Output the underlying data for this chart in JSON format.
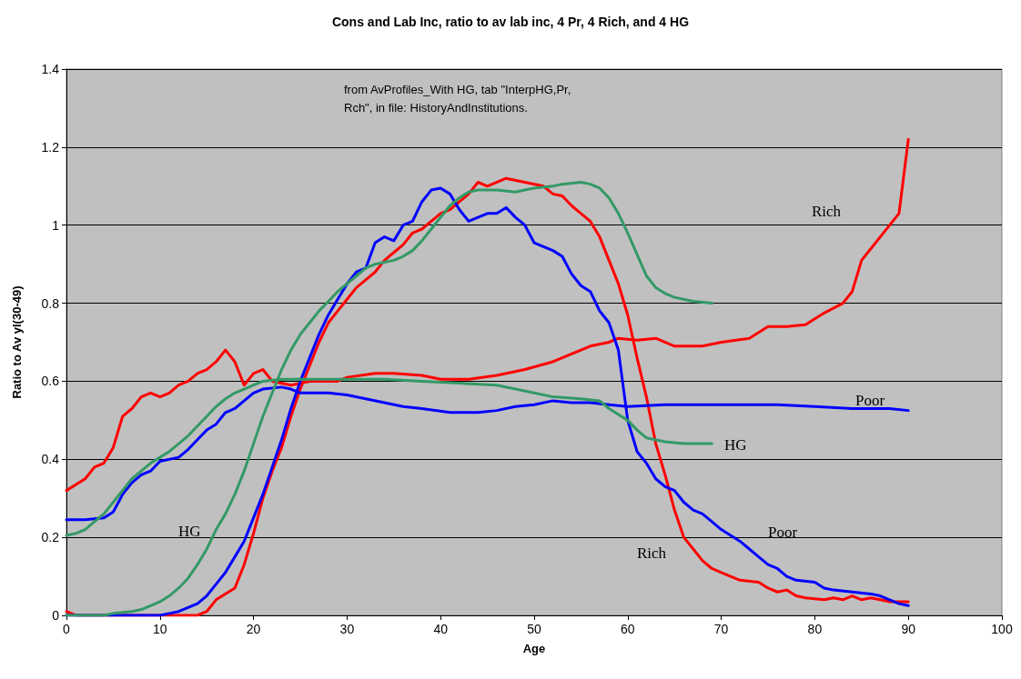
{
  "chart_data": {
    "type": "line",
    "title": "Cons and Lab Inc, ratio to av lab inc, 4 Pr, 4 Rich, and 4 HG",
    "xlabel": "Age",
    "ylabel": "Ratio to Av yl(30-49)",
    "xlim": [
      0,
      100
    ],
    "xticks": [
      0,
      10,
      20,
      30,
      40,
      50,
      60,
      70,
      80,
      90,
      100
    ],
    "ylim": [
      0,
      1.4
    ],
    "yticks": [
      0,
      0.2,
      0.4,
      0.6,
      0.8,
      1,
      1.2,
      1.4
    ],
    "grid": "y",
    "marker": "none",
    "line_style": "solid",
    "annotations": [
      "from AvProfiles_With HG, tab \"InterpHG,Pr,Rch\", in file: HistoryAndInstitutions.",
      "Rich",
      "Poor",
      "HG",
      "Poor",
      "Rich",
      "HG"
    ],
    "series": [
      {
        "color": "#ff0000",
        "x": [
          0,
          2,
          3,
          4,
          5,
          6,
          7,
          8,
          9,
          10,
          11,
          12,
          13,
          14,
          15,
          16,
          17,
          18,
          19,
          20,
          21,
          22,
          24,
          26,
          29,
          30,
          33,
          35,
          38,
          40,
          43,
          46,
          49,
          52,
          54,
          56,
          58,
          59,
          61,
          63,
          65,
          68,
          70,
          73,
          75,
          77,
          79,
          81,
          83,
          84,
          85,
          86,
          87,
          89,
          90
        ],
        "values": [
          0.32,
          0.35,
          0.38,
          0.39,
          0.43,
          0.51,
          0.53,
          0.56,
          0.57,
          0.56,
          0.57,
          0.59,
          0.6,
          0.62,
          0.63,
          0.65,
          0.68,
          0.65,
          0.59,
          0.62,
          0.63,
          0.6,
          0.59,
          0.6,
          0.6,
          0.61,
          0.62,
          0.62,
          0.615,
          0.605,
          0.605,
          0.615,
          0.63,
          0.65,
          0.67,
          0.69,
          0.7,
          0.71,
          0.705,
          0.71,
          0.69,
          0.69,
          0.7,
          0.71,
          0.74,
          0.74,
          0.745,
          0.775,
          0.8,
          0.83,
          0.91,
          0.94,
          0.97,
          1.03,
          1.22
        ]
      },
      {
        "color": "#ff0000",
        "x": [
          0,
          1,
          14,
          15,
          16,
          18,
          19,
          20,
          21,
          22,
          23,
          24,
          25,
          26,
          27,
          28,
          29,
          30,
          31,
          32,
          33,
          34,
          35,
          36,
          37,
          38,
          39,
          40,
          41,
          42,
          43,
          44,
          45,
          47,
          49,
          51,
          52,
          53,
          54,
          55,
          56,
          57,
          58,
          59,
          60,
          61,
          62,
          63,
          64,
          65,
          66,
          67,
          68,
          69,
          70,
          71,
          72,
          74,
          75,
          76,
          77,
          78,
          79,
          81,
          82,
          83,
          84,
          85,
          86,
          87,
          88,
          90
        ],
        "values": [
          0.01,
          0,
          0,
          0.01,
          0.04,
          0.07,
          0.13,
          0.21,
          0.3,
          0.37,
          0.43,
          0.51,
          0.58,
          0.64,
          0.7,
          0.75,
          0.78,
          0.81,
          0.84,
          0.86,
          0.88,
          0.91,
          0.93,
          0.95,
          0.98,
          0.99,
          1.01,
          1.03,
          1.04,
          1.06,
          1.08,
          1.11,
          1.1,
          1.12,
          1.11,
          1.1,
          1.08,
          1.075,
          1.05,
          1.03,
          1.01,
          0.97,
          0.91,
          0.85,
          0.77,
          0.66,
          0.56,
          0.44,
          0.36,
          0.27,
          0.2,
          0.17,
          0.14,
          0.12,
          0.11,
          0.1,
          0.09,
          0.085,
          0.07,
          0.06,
          0.065,
          0.05,
          0.045,
          0.04,
          0.045,
          0.04,
          0.05,
          0.04,
          0.045,
          0.04,
          0.035,
          0.035
        ]
      },
      {
        "color": "#0000ff",
        "x": [
          0,
          2,
          4,
          5,
          6,
          7,
          8,
          9,
          10,
          12,
          13,
          14,
          15,
          16,
          17,
          18,
          19,
          20,
          21,
          23,
          24,
          25,
          28,
          30,
          32,
          34,
          36,
          38,
          41,
          44,
          46,
          48,
          50,
          52,
          54,
          56,
          58,
          60,
          64,
          68,
          72,
          76,
          80,
          84,
          88,
          90
        ],
        "values": [
          0.245,
          0.245,
          0.25,
          0.265,
          0.31,
          0.34,
          0.36,
          0.37,
          0.395,
          0.405,
          0.425,
          0.45,
          0.475,
          0.49,
          0.52,
          0.53,
          0.55,
          0.57,
          0.58,
          0.585,
          0.58,
          0.57,
          0.57,
          0.565,
          0.555,
          0.545,
          0.535,
          0.53,
          0.52,
          0.52,
          0.525,
          0.535,
          0.54,
          0.55,
          0.545,
          0.545,
          0.54,
          0.535,
          0.54,
          0.54,
          0.54,
          0.54,
          0.535,
          0.53,
          0.53,
          0.525
        ]
      },
      {
        "color": "#0000ff",
        "x": [
          0,
          10,
          11,
          12,
          13,
          14,
          15,
          16,
          17,
          18,
          19,
          20,
          21,
          22,
          23,
          24,
          25,
          26,
          27,
          28,
          29,
          30,
          31,
          32,
          33,
          34,
          35,
          36,
          37,
          38,
          39,
          40,
          41,
          42,
          43,
          44,
          45,
          46,
          47,
          48,
          49,
          50,
          52,
          53,
          54,
          55,
          56,
          57,
          58,
          59,
          60,
          61,
          62,
          63,
          64,
          65,
          66,
          67,
          68,
          69,
          70,
          71,
          72,
          73,
          74,
          75,
          76,
          77,
          78,
          80,
          81,
          82,
          84,
          86,
          87,
          88,
          89,
          90
        ],
        "values": [
          0,
          0,
          0.005,
          0.01,
          0.02,
          0.03,
          0.05,
          0.08,
          0.11,
          0.15,
          0.19,
          0.25,
          0.31,
          0.38,
          0.45,
          0.53,
          0.6,
          0.66,
          0.72,
          0.77,
          0.81,
          0.85,
          0.88,
          0.89,
          0.955,
          0.97,
          0.96,
          1,
          1.01,
          1.06,
          1.09,
          1.095,
          1.08,
          1.04,
          1.01,
          1.02,
          1.03,
          1.03,
          1.045,
          1.02,
          1,
          0.955,
          0.935,
          0.92,
          0.875,
          0.845,
          0.83,
          0.78,
          0.75,
          0.68,
          0.5,
          0.42,
          0.39,
          0.35,
          0.33,
          0.32,
          0.29,
          0.27,
          0.26,
          0.24,
          0.22,
          0.205,
          0.19,
          0.17,
          0.15,
          0.13,
          0.12,
          0.1,
          0.09,
          0.085,
          0.07,
          0.065,
          0.06,
          0.055,
          0.05,
          0.04,
          0.03,
          0.025
        ]
      },
      {
        "color": "#339966",
        "x": [
          0,
          1,
          2,
          3,
          4,
          5,
          6,
          7,
          8,
          9,
          10,
          11,
          12,
          13,
          14,
          15,
          16,
          17,
          18,
          19,
          20,
          21,
          23,
          26,
          30,
          34,
          38,
          42,
          46,
          48,
          50,
          52,
          55,
          57,
          58,
          60,
          61,
          62,
          64,
          66,
          69
        ],
        "values": [
          0.205,
          0.21,
          0.22,
          0.24,
          0.26,
          0.29,
          0.32,
          0.35,
          0.37,
          0.39,
          0.405,
          0.42,
          0.44,
          0.46,
          0.485,
          0.51,
          0.535,
          0.555,
          0.57,
          0.58,
          0.59,
          0.6,
          0.605,
          0.605,
          0.605,
          0.605,
          0.6,
          0.595,
          0.59,
          0.58,
          0.57,
          0.56,
          0.555,
          0.55,
          0.53,
          0.5,
          0.475,
          0.455,
          0.445,
          0.44,
          0.44
        ]
      },
      {
        "color": "#339966",
        "x": [
          0,
          4,
          5,
          7,
          8,
          9,
          10,
          11,
          12,
          13,
          14,
          15,
          16,
          17,
          18,
          19,
          20,
          21,
          22,
          23,
          24,
          25,
          26,
          27,
          28,
          29,
          30,
          31,
          32,
          33,
          34,
          35,
          36,
          37,
          38,
          39,
          40,
          41,
          42,
          43,
          44,
          46,
          48,
          49,
          50,
          52,
          53,
          55,
          56,
          57,
          58,
          59,
          60,
          61,
          62,
          63,
          64,
          65,
          67,
          69
        ],
        "values": [
          0,
          0,
          0.005,
          0.01,
          0.015,
          0.025,
          0.035,
          0.05,
          0.07,
          0.095,
          0.13,
          0.17,
          0.22,
          0.26,
          0.31,
          0.37,
          0.44,
          0.51,
          0.57,
          0.63,
          0.68,
          0.72,
          0.75,
          0.78,
          0.805,
          0.83,
          0.85,
          0.87,
          0.89,
          0.9,
          0.905,
          0.91,
          0.92,
          0.935,
          0.96,
          0.99,
          1.02,
          1.05,
          1.07,
          1.085,
          1.09,
          1.09,
          1.085,
          1.09,
          1.095,
          1.1,
          1.105,
          1.11,
          1.105,
          1.095,
          1.07,
          1.03,
          0.98,
          0.925,
          0.87,
          0.84,
          0.825,
          0.815,
          0.805,
          0.8
        ]
      }
    ]
  }
}
